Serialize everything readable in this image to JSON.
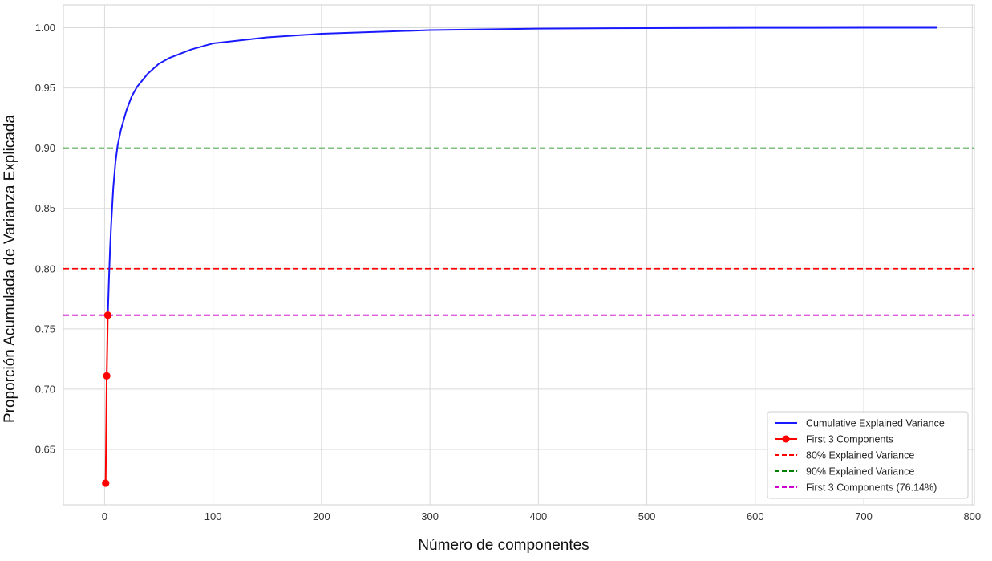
{
  "chart_data": {
    "type": "line",
    "title": "",
    "xlabel": "Número de componentes",
    "ylabel": "Proporción Acumulada de Varianza Explicada",
    "xlim": [
      -38,
      802
    ],
    "ylim": [
      0.604,
      1.019
    ],
    "xticks": [
      0,
      100,
      200,
      300,
      400,
      500,
      600,
      700,
      800
    ],
    "yticks": [
      0.65,
      0.7,
      0.75,
      0.8,
      0.85,
      0.9,
      0.95,
      1.0
    ],
    "ytick_labels": [
      "0.65",
      "0.70",
      "0.75",
      "0.80",
      "0.85",
      "0.90",
      "0.95",
      "1.00"
    ],
    "grid": true,
    "legend_position": "lower-right",
    "series": [
      {
        "name": "Cumulative Explained Variance",
        "kind": "line",
        "color": "#1a1aff",
        "x": [
          3,
          4,
          5,
          6,
          8,
          10,
          12,
          15,
          20,
          25,
          30,
          40,
          50,
          60,
          80,
          100,
          150,
          200,
          300,
          400,
          500,
          600,
          700,
          768
        ],
        "y": [
          0.7614,
          0.79,
          0.815,
          0.835,
          0.867,
          0.888,
          0.902,
          0.915,
          0.931,
          0.943,
          0.951,
          0.962,
          0.97,
          0.975,
          0.982,
          0.987,
          0.992,
          0.995,
          0.998,
          0.9993,
          0.9997,
          0.9999,
          1.0,
          1.0
        ]
      },
      {
        "name": "First 3 Components",
        "kind": "line-markers",
        "color": "#ff0000",
        "x": [
          1,
          2,
          3
        ],
        "y": [
          0.622,
          0.711,
          0.7614
        ]
      }
    ],
    "hlines": [
      {
        "name": "80% Explained Variance",
        "y": 0.8,
        "color": "#ff0000",
        "style": "dashed"
      },
      {
        "name": "90% Explained Variance",
        "y": 0.9,
        "color": "#008000",
        "style": "dashed"
      },
      {
        "name": "First 3 Components (76.14%)",
        "y": 0.7614,
        "color": "#cc00cc",
        "style": "dashed"
      }
    ],
    "legend": [
      {
        "label": "Cumulative Explained Variance",
        "color": "#1a1aff",
        "style": "solid"
      },
      {
        "label": "First 3 Components",
        "color": "#ff0000",
        "style": "solid-marker"
      },
      {
        "label": "80% Explained Variance",
        "color": "#ff0000",
        "style": "dashed"
      },
      {
        "label": "90% Explained Variance",
        "color": "#008000",
        "style": "dashed"
      },
      {
        "label": "First 3 Components (76.14%)",
        "color": "#cc00cc",
        "style": "dashed"
      }
    ]
  }
}
